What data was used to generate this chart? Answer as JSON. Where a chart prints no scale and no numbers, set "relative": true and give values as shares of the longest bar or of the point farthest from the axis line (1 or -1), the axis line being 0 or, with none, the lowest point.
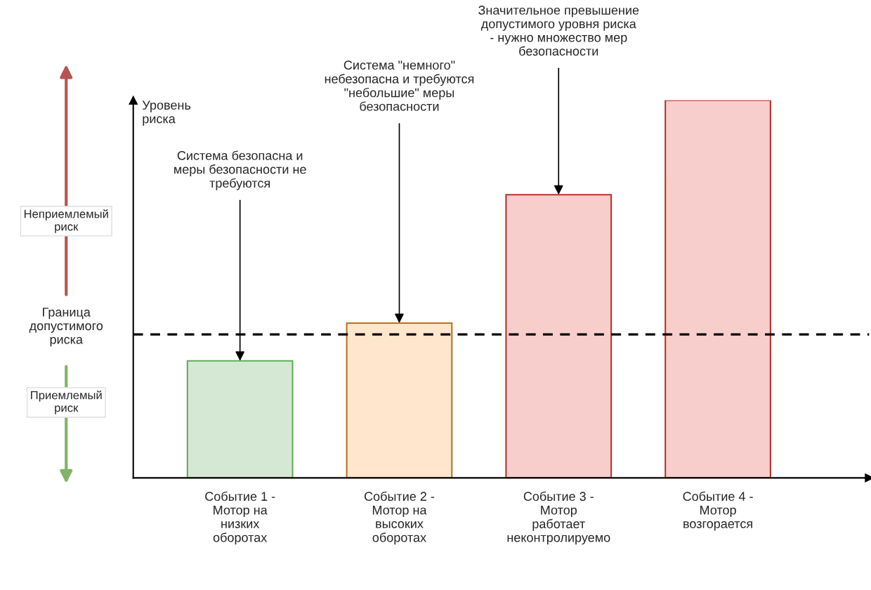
{
  "chart_data": {
    "type": "bar",
    "relative": true,
    "ylabel": "Уровень\nриска",
    "categories": [
      "Событие 1 -\nМотор на\nнизких\nоборотах",
      "Событие 2 -\nМотор на\nвысоких\nоборотах",
      "Событие 3 -\nМотор\nработает\nнеконтролируемо",
      "Событие 4 -\nМотор\nвозгорается"
    ],
    "values": [
      0.31,
      0.41,
      0.75,
      1
    ],
    "colors": [
      "#d5e8d4",
      "#ffe6cc",
      "#f8cecc",
      "#f8cecc"
    ],
    "ref_lines": [
      {
        "axis": "y",
        "value": 0.38,
        "label": "Граница\nдопустимого\nриска",
        "color": "#000000",
        "line_style": "dashed"
      }
    ],
    "annotations": [
      {
        "text": "Система безопасна и\nмеры безопасности не\nтребуются",
        "x": "Событие 1 -\nМотор на\nнизких\nоборотах",
        "y": 0.31
      },
      {
        "text": "Система \"немного\"\nнебезопасна и требуются\n\"небольшие\" меры\nбезопасности",
        "x": "Событие 2 -\nМотор на\nвысоких\nоборотах",
        "y": 0.41
      },
      {
        "text": "Значительное превышение\nдопустимого уровня риска\n- нужно множество мер\nбезопасности",
        "x": "Событие 3 -\nМотор\nработает\nнеконтролируемо",
        "y": 0.75
      },
      "Неприемлемый\nриск",
      "Приемлемый\nриск"
    ],
    "grid": false
  }
}
